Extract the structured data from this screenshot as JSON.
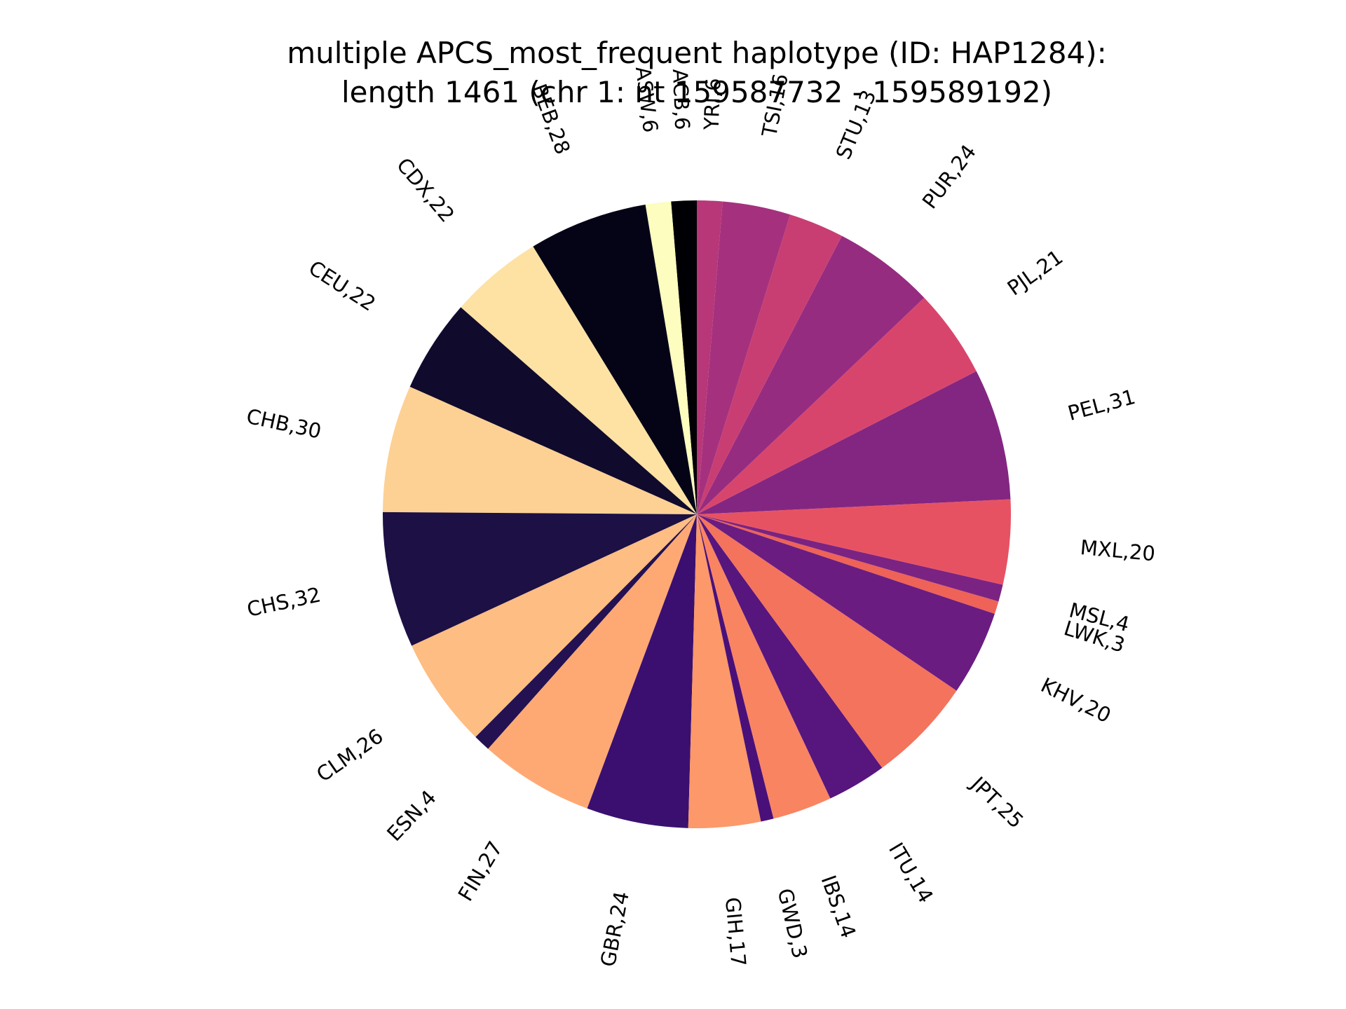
{
  "chart_data": {
    "type": "pie",
    "title_line1": "multiple APCS_most_frequent haplotype (ID: HAP1284):",
    "title_line2": "length 1461 (chr 1: nt 159587732 - 159589192)",
    "start_angle": "top, counter-clockwise",
    "slices": [
      {
        "name": "ACB",
        "value": 6,
        "label": "ACB,6",
        "color": "#000004"
      },
      {
        "name": "ASW",
        "value": 6,
        "label": "ASW,6",
        "color": "#fcfdbf"
      },
      {
        "name": "BEB",
        "value": 28,
        "label": "BEB,28",
        "color": "#050417"
      },
      {
        "name": "CDX",
        "value": 22,
        "label": "CDX,22",
        "color": "#fde2a4"
      },
      {
        "name": "CEU",
        "value": 22,
        "label": "CEU,22",
        "color": "#100b2d"
      },
      {
        "name": "CHB",
        "value": 30,
        "label": "CHB,30",
        "color": "#fdd194"
      },
      {
        "name": "CHS",
        "value": 32,
        "label": "CHS,32",
        "color": "#1c1044"
      },
      {
        "name": "CLM",
        "value": 26,
        "label": "CLM,26",
        "color": "#febd82"
      },
      {
        "name": "ESN",
        "value": 4,
        "label": "ESN,4",
        "color": "#231151"
      },
      {
        "name": "FIN",
        "value": 27,
        "label": "FIN,27",
        "color": "#fea973"
      },
      {
        "name": "GBR",
        "value": 24,
        "label": "GBR,24",
        "color": "#3b0f70"
      },
      {
        "name": "GIH",
        "value": 17,
        "label": "GIH,17",
        "color": "#fc9869"
      },
      {
        "name": "GWD",
        "value": 3,
        "label": "GWD,3",
        "color": "#4a1079"
      },
      {
        "name": "IBS",
        "value": 14,
        "label": "IBS,14",
        "color": "#f98462"
      },
      {
        "name": "ITU",
        "value": 14,
        "label": "ITU,14",
        "color": "#57157e"
      },
      {
        "name": "JPT",
        "value": 25,
        "label": "JPT,25",
        "color": "#f4735c"
      },
      {
        "name": "KHV",
        "value": 20,
        "label": "KHV,20",
        "color": "#6a1c81"
      },
      {
        "name": "LWK",
        "value": 3,
        "label": "LWK,3",
        "color": "#ee6258"
      },
      {
        "name": "MSL",
        "value": 4,
        "label": "MSL,4",
        "color": "#7b2382"
      },
      {
        "name": "MXL",
        "value": 20,
        "label": "MXL,20",
        "color": "#e75263"
      },
      {
        "name": "PEL",
        "value": 31,
        "label": "PEL,31",
        "color": "#832681"
      },
      {
        "name": "PJL",
        "value": 21,
        "label": "PJL,21",
        "color": "#d8456c"
      },
      {
        "name": "PUR",
        "value": 24,
        "label": "PUR,24",
        "color": "#962c80"
      },
      {
        "name": "STU",
        "value": 13,
        "label": "STU,13",
        "color": "#c93e72"
      },
      {
        "name": "TSI",
        "value": 16,
        "label": "TSI,16",
        "color": "#a5317e"
      },
      {
        "name": "YRI",
        "value": 6,
        "label": "YRI,6",
        "color": "#b73779"
      }
    ]
  }
}
